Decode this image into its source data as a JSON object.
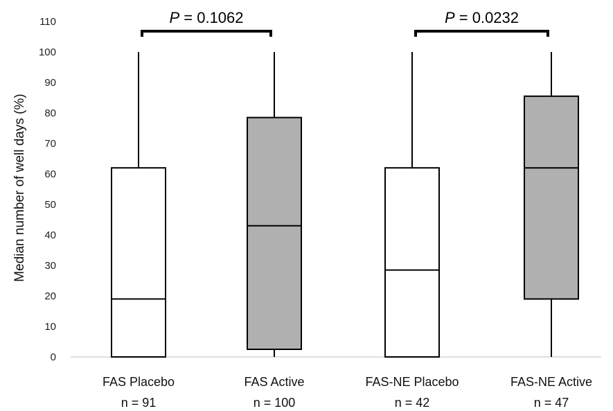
{
  "chart_data": {
    "type": "boxplot",
    "ylabel": "Median number of well days (%)",
    "ylim": [
      0,
      110
    ],
    "yticks": [
      0,
      10,
      20,
      30,
      40,
      50,
      60,
      70,
      80,
      90,
      100,
      110
    ],
    "grid": false,
    "groups": [
      {
        "label": "FAS Placebo",
        "n_label": "n = 91",
        "whisker_low": 0,
        "q1": 0,
        "median": 19,
        "q3": 62,
        "whisker_high": 100,
        "fill": "#ffffff"
      },
      {
        "label": "FAS Active",
        "n_label": "n = 100",
        "whisker_low": 0,
        "q1": 2.5,
        "median": 43,
        "q3": 78.5,
        "whisker_high": 100,
        "fill": "#b0b0b0"
      },
      {
        "label": "FAS-NE Placebo",
        "n_label": "n = 42",
        "whisker_low": 0,
        "q1": 0,
        "median": 28.5,
        "q3": 62,
        "whisker_high": 100,
        "fill": "#ffffff"
      },
      {
        "label": "FAS-NE Active",
        "n_label": "n = 47",
        "whisker_low": 0,
        "q1": 19,
        "median": 62,
        "q3": 85.5,
        "whisker_high": 100,
        "fill": "#b0b0b0"
      }
    ],
    "annotations": [
      {
        "from_group": 0,
        "to_group": 1,
        "p_symbol": "P",
        "p_text": " = 0.1062"
      },
      {
        "from_group": 2,
        "to_group": 3,
        "p_symbol": "P",
        "p_text": " = 0.0232"
      }
    ]
  }
}
